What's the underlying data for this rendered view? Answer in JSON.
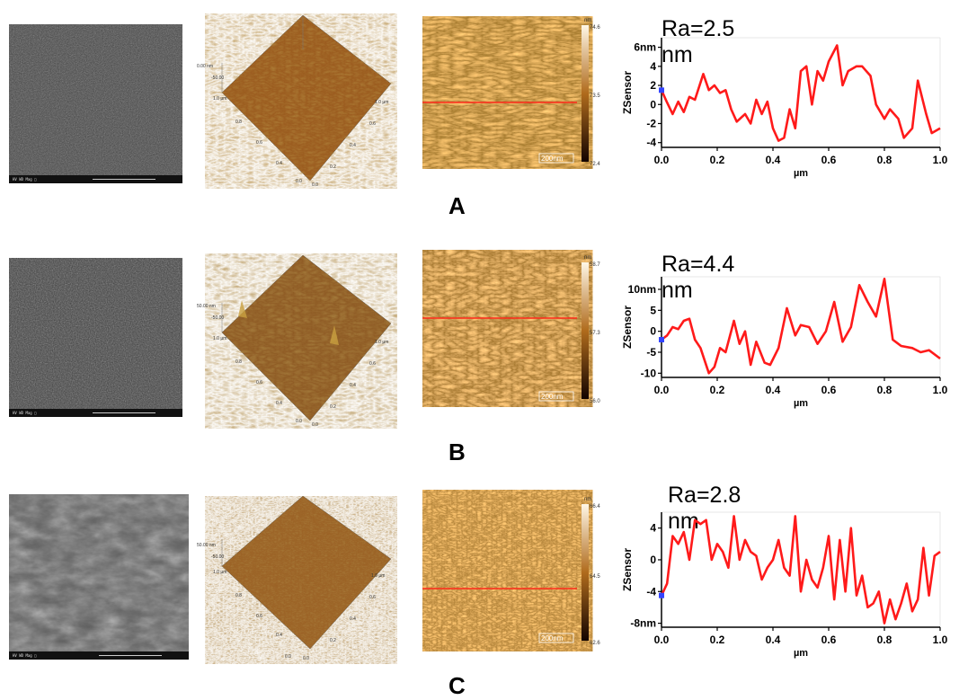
{
  "panels": [
    {
      "label": "A",
      "sem_info": "HV    WD    Mag    □",
      "surface3d": {
        "z_label": "0.00 nm",
        "z_low": "-50.00",
        "y_ticks": [
          "1.0 µm",
          "0.8",
          "0.6",
          "0.4",
          "0.2",
          "0.0"
        ],
        "x_ticks": [
          "0.0",
          "0.2",
          "0.4",
          "0.6",
          "0.8",
          "1.0 µm"
        ]
      },
      "height_map": {
        "unit": "nm",
        "max": "74.6",
        "mid": "73.5",
        "min": "72.4",
        "scale_bar": "200nm"
      },
      "profile_title": "Ra=2.5 nm",
      "chart_data": {
        "type": "line",
        "title": "Ra=2.5 nm",
        "xlabel": "µm",
        "ylabel": "ZSensor",
        "xlim": [
          0,
          1.0
        ],
        "ylim": [
          -4.5,
          7
        ],
        "y_ticks": [
          "6nm",
          "4",
          "2",
          "0",
          "-2",
          "-4"
        ],
        "x_ticks": [
          "0.0",
          "0.2",
          "0.4",
          "0.6",
          "0.8",
          "1.0"
        ],
        "x": [
          0,
          0.02,
          0.04,
          0.06,
          0.08,
          0.1,
          0.12,
          0.15,
          0.17,
          0.19,
          0.21,
          0.23,
          0.25,
          0.27,
          0.3,
          0.32,
          0.34,
          0.36,
          0.38,
          0.4,
          0.42,
          0.44,
          0.46,
          0.48,
          0.5,
          0.52,
          0.54,
          0.56,
          0.58,
          0.6,
          0.63,
          0.65,
          0.67,
          0.7,
          0.72,
          0.75,
          0.77,
          0.8,
          0.82,
          0.85,
          0.87,
          0.9,
          0.92,
          0.95,
          0.97,
          1.0
        ],
        "y": [
          1.5,
          0.2,
          -1,
          0.3,
          -0.8,
          0.8,
          0.5,
          3.2,
          1.5,
          2,
          1.2,
          1.5,
          -0.5,
          -1.8,
          -1,
          -2,
          0.5,
          -1,
          0.3,
          -2.5,
          -3.8,
          -3.5,
          -0.5,
          -2.5,
          3.5,
          4,
          0,
          3.5,
          2.5,
          4.5,
          6.2,
          2,
          3.5,
          4,
          4,
          3,
          0,
          -1.5,
          -0.5,
          -1.5,
          -3.5,
          -2.5,
          2.5,
          -1,
          -3,
          -2.5
        ]
      }
    },
    {
      "label": "B",
      "sem_info": "HV    WD    Mag    □",
      "surface3d": {
        "z_label": "50.00 nm",
        "z_low": "-50.00",
        "y_ticks": [
          "1.0 µm",
          "0.8",
          "0.6",
          "0.4",
          "0.2",
          "0.0"
        ],
        "x_ticks": [
          "0.0",
          "0.2",
          "0.4",
          "0.6",
          "0.8",
          "1.0 µm"
        ]
      },
      "height_map": {
        "unit": "nm",
        "max": "58.7",
        "mid": "57.3",
        "min": "56.0",
        "scale_bar": "200nm"
      },
      "profile_title": "Ra=4.4 nm",
      "chart_data": {
        "type": "line",
        "title": "Ra=4.4 nm",
        "xlabel": "µm",
        "ylabel": "ZSensor",
        "xlim": [
          0,
          1.0
        ],
        "ylim": [
          -11,
          13
        ],
        "y_ticks": [
          "10nm",
          "5",
          "0",
          "-5",
          "-10"
        ],
        "x_ticks": [
          "0.0",
          "0.2",
          "0.4",
          "0.6",
          "0.8",
          "1.0"
        ],
        "x": [
          0,
          0.02,
          0.04,
          0.06,
          0.08,
          0.1,
          0.12,
          0.14,
          0.17,
          0.19,
          0.21,
          0.23,
          0.26,
          0.28,
          0.3,
          0.32,
          0.34,
          0.37,
          0.39,
          0.42,
          0.45,
          0.48,
          0.5,
          0.53,
          0.56,
          0.59,
          0.62,
          0.65,
          0.68,
          0.71,
          0.74,
          0.77,
          0.8,
          0.83,
          0.86,
          0.9,
          0.93,
          0.96,
          1.0
        ],
        "y": [
          -2,
          -1,
          1,
          0.5,
          2.5,
          3,
          -2,
          -4,
          -10,
          -8.5,
          -4,
          -5,
          2.5,
          -3,
          0,
          -8,
          -2.5,
          -7.5,
          -8,
          -4,
          5.5,
          -1,
          1.5,
          1,
          -3,
          0,
          7,
          -2.5,
          1,
          11,
          7,
          3.5,
          12.5,
          -2,
          -3.5,
          -4,
          -5,
          -4.5,
          -6.5
        ]
      }
    },
    {
      "label": "C",
      "sem_info": "HV    WD    Mag    □",
      "surface3d": {
        "z_label": "50.00 nm",
        "z_low": "-50.00",
        "y_ticks": [
          "1.0 µm",
          "0.8",
          "0.6",
          "0.4",
          "0.2",
          "0.0"
        ],
        "x_ticks": [
          "0.0",
          "0.2",
          "0.4",
          "0.6",
          "0.8",
          "1.0 µm"
        ]
      },
      "height_map": {
        "unit": "nm",
        "max": "66.4",
        "mid": "64.5",
        "min": "62.6",
        "scale_bar": "200nm"
      },
      "profile_title": "Ra=2.8 nm",
      "chart_data": {
        "type": "line",
        "title": "Ra=2.8 nm",
        "xlabel": "µm",
        "ylabel": "ZSensor",
        "xlim": [
          0,
          1.0
        ],
        "ylim": [
          -8.5,
          6
        ],
        "y_ticks": [
          "4",
          "0",
          "-4",
          "-8nm"
        ],
        "x_ticks": [
          "0.0",
          "0.2",
          "0.4",
          "0.6",
          "0.8",
          "1.0"
        ],
        "x": [
          0,
          0.02,
          0.04,
          0.06,
          0.08,
          0.1,
          0.12,
          0.14,
          0.16,
          0.18,
          0.2,
          0.22,
          0.24,
          0.26,
          0.28,
          0.3,
          0.32,
          0.34,
          0.36,
          0.38,
          0.4,
          0.42,
          0.44,
          0.46,
          0.48,
          0.5,
          0.52,
          0.54,
          0.56,
          0.58,
          0.6,
          0.62,
          0.64,
          0.66,
          0.68,
          0.7,
          0.72,
          0.74,
          0.76,
          0.78,
          0.8,
          0.82,
          0.84,
          0.86,
          0.88,
          0.9,
          0.92,
          0.94,
          0.96,
          0.98,
          1.0
        ],
        "y": [
          -4.5,
          -3,
          3,
          2,
          3.5,
          0,
          5,
          4.5,
          5,
          0,
          2,
          1,
          -1,
          5.5,
          0,
          2.5,
          1,
          0.5,
          -2.5,
          -1,
          0,
          2.5,
          -1,
          -2,
          5.5,
          -4,
          0,
          -2.5,
          -3.5,
          -1,
          3,
          -5,
          2.5,
          -4,
          4,
          -4.5,
          -2,
          -6,
          -5.5,
          -4,
          -8,
          -5,
          -7.5,
          -5.5,
          -3,
          -6.5,
          -5,
          1.5,
          -4.5,
          0.5,
          1
        ]
      }
    }
  ]
}
